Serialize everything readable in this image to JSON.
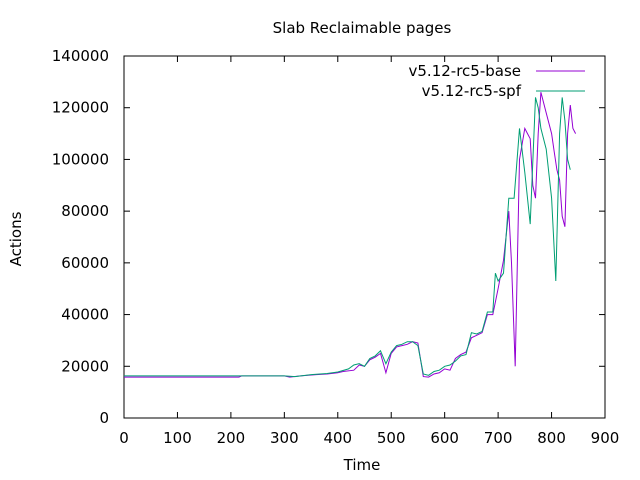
{
  "chart_data": {
    "type": "line",
    "title": "Slab Reclaimable pages",
    "xlabel": "Time",
    "ylabel": "Actions",
    "xlim": [
      0,
      900
    ],
    "ylim": [
      0,
      140000
    ],
    "xticks": [
      0,
      100,
      200,
      300,
      400,
      500,
      600,
      700,
      800,
      900
    ],
    "yticks": [
      0,
      20000,
      40000,
      60000,
      80000,
      100000,
      120000,
      140000
    ],
    "grid": false,
    "legend_position": "top-right",
    "series": [
      {
        "name": "v5.12-rc5-base",
        "color": "#9400d3",
        "points": [
          [
            0,
            15800
          ],
          [
            100,
            15800
          ],
          [
            215,
            15800
          ],
          [
            220,
            16300
          ],
          [
            300,
            16300
          ],
          [
            310,
            15800
          ],
          [
            330,
            16300
          ],
          [
            360,
            16800
          ],
          [
            380,
            17000
          ],
          [
            400,
            17500
          ],
          [
            410,
            18000
          ],
          [
            430,
            18500
          ],
          [
            440,
            20500
          ],
          [
            450,
            20000
          ],
          [
            460,
            22500
          ],
          [
            470,
            23500
          ],
          [
            480,
            25000
          ],
          [
            490,
            17500
          ],
          [
            500,
            25000
          ],
          [
            510,
            27500
          ],
          [
            520,
            28000
          ],
          [
            530,
            28500
          ],
          [
            540,
            29500
          ],
          [
            550,
            29000
          ],
          [
            560,
            16000
          ],
          [
            570,
            15800
          ],
          [
            580,
            17000
          ],
          [
            590,
            17500
          ],
          [
            600,
            19000
          ],
          [
            610,
            18500
          ],
          [
            620,
            23000
          ],
          [
            630,
            24500
          ],
          [
            640,
            25500
          ],
          [
            650,
            31000
          ],
          [
            660,
            32000
          ],
          [
            670,
            33000
          ],
          [
            680,
            40000
          ],
          [
            690,
            40000
          ],
          [
            700,
            50000
          ],
          [
            710,
            61000
          ],
          [
            720,
            80000
          ],
          [
            725,
            60000
          ],
          [
            732,
            20000
          ],
          [
            740,
            100000
          ],
          [
            750,
            112000
          ],
          [
            755,
            110000
          ],
          [
            760,
            108000
          ],
          [
            765,
            90000
          ],
          [
            770,
            85000
          ],
          [
            775,
            110000
          ],
          [
            780,
            126000
          ],
          [
            790,
            118000
          ],
          [
            800,
            110000
          ],
          [
            805,
            103000
          ],
          [
            810,
            96000
          ],
          [
            815,
            92000
          ],
          [
            820,
            78000
          ],
          [
            825,
            74000
          ],
          [
            830,
            110000
          ],
          [
            835,
            121000
          ],
          [
            840,
            112000
          ],
          [
            845,
            110000
          ]
        ]
      },
      {
        "name": "v5.12-rc5-spf",
        "color": "#009e73",
        "points": [
          [
            0,
            16300
          ],
          [
            100,
            16300
          ],
          [
            200,
            16300
          ],
          [
            300,
            16300
          ],
          [
            320,
            16000
          ],
          [
            350,
            16800
          ],
          [
            380,
            17200
          ],
          [
            400,
            17800
          ],
          [
            420,
            19000
          ],
          [
            430,
            20500
          ],
          [
            440,
            21000
          ],
          [
            450,
            20000
          ],
          [
            460,
            23000
          ],
          [
            470,
            24000
          ],
          [
            480,
            26000
          ],
          [
            490,
            21000
          ],
          [
            500,
            25500
          ],
          [
            510,
            28000
          ],
          [
            520,
            28500
          ],
          [
            530,
            29500
          ],
          [
            540,
            29500
          ],
          [
            550,
            28000
          ],
          [
            560,
            17000
          ],
          [
            570,
            16500
          ],
          [
            580,
            18000
          ],
          [
            590,
            18500
          ],
          [
            600,
            20000
          ],
          [
            610,
            20500
          ],
          [
            620,
            22000
          ],
          [
            630,
            24000
          ],
          [
            640,
            24500
          ],
          [
            650,
            33000
          ],
          [
            660,
            32500
          ],
          [
            670,
            33500
          ],
          [
            680,
            41000
          ],
          [
            690,
            41000
          ],
          [
            695,
            56000
          ],
          [
            700,
            53000
          ],
          [
            710,
            56000
          ],
          [
            720,
            85000
          ],
          [
            730,
            85000
          ],
          [
            740,
            112000
          ],
          [
            750,
            95000
          ],
          [
            755,
            85000
          ],
          [
            760,
            75000
          ],
          [
            770,
            124000
          ],
          [
            775,
            120000
          ],
          [
            780,
            112000
          ],
          [
            790,
            104000
          ],
          [
            800,
            85000
          ],
          [
            808,
            53000
          ],
          [
            815,
            110000
          ],
          [
            820,
            124000
          ],
          [
            825,
            115000
          ],
          [
            830,
            100000
          ],
          [
            835,
            96000
          ]
        ]
      }
    ]
  }
}
